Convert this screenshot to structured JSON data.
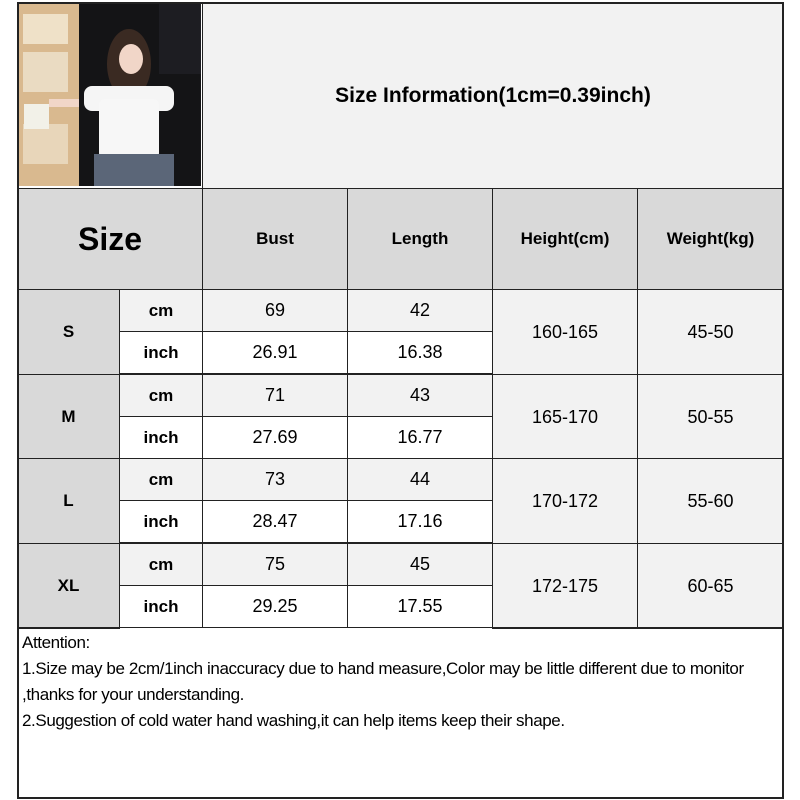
{
  "title": "Size Information(1cm=0.39inch)",
  "header": {
    "size": "Size",
    "columns": [
      "Bust",
      "Length",
      "Height(cm)",
      "Weight(kg)"
    ]
  },
  "units": {
    "cm": "cm",
    "inch": "inch"
  },
  "rows": [
    {
      "size": "S",
      "cm": {
        "bust": "69",
        "length": "42"
      },
      "inch": {
        "bust": "26.91",
        "length": "16.38"
      },
      "height": "160-165",
      "weight": "45-50"
    },
    {
      "size": "M",
      "cm": {
        "bust": "71",
        "length": "43"
      },
      "inch": {
        "bust": "27.69",
        "length": "16.77"
      },
      "height": "165-170",
      "weight": "50-55"
    },
    {
      "size": "L",
      "cm": {
        "bust": "73",
        "length": "44"
      },
      "inch": {
        "bust": "28.47",
        "length": "17.16"
      },
      "height": "170-172",
      "weight": "55-60"
    },
    {
      "size": "XL",
      "cm": {
        "bust": "75",
        "length": "45"
      },
      "inch": {
        "bust": "29.25",
        "length": "17.55"
      },
      "height": "172-175",
      "weight": "60-65"
    }
  ],
  "notes": {
    "heading": "Attention:",
    "lines": [
      "1.Size may be 2cm/1inch inaccuracy due to hand measure,Color may be little different due to monitor ,thanks for your understanding.",
      "2.Suggestion of cold water hand washing,it can help items keep their shape."
    ]
  },
  "colors": {
    "header_bg": "#d9d9d9",
    "light_bg": "#f2f2f2",
    "border": "#222222"
  }
}
